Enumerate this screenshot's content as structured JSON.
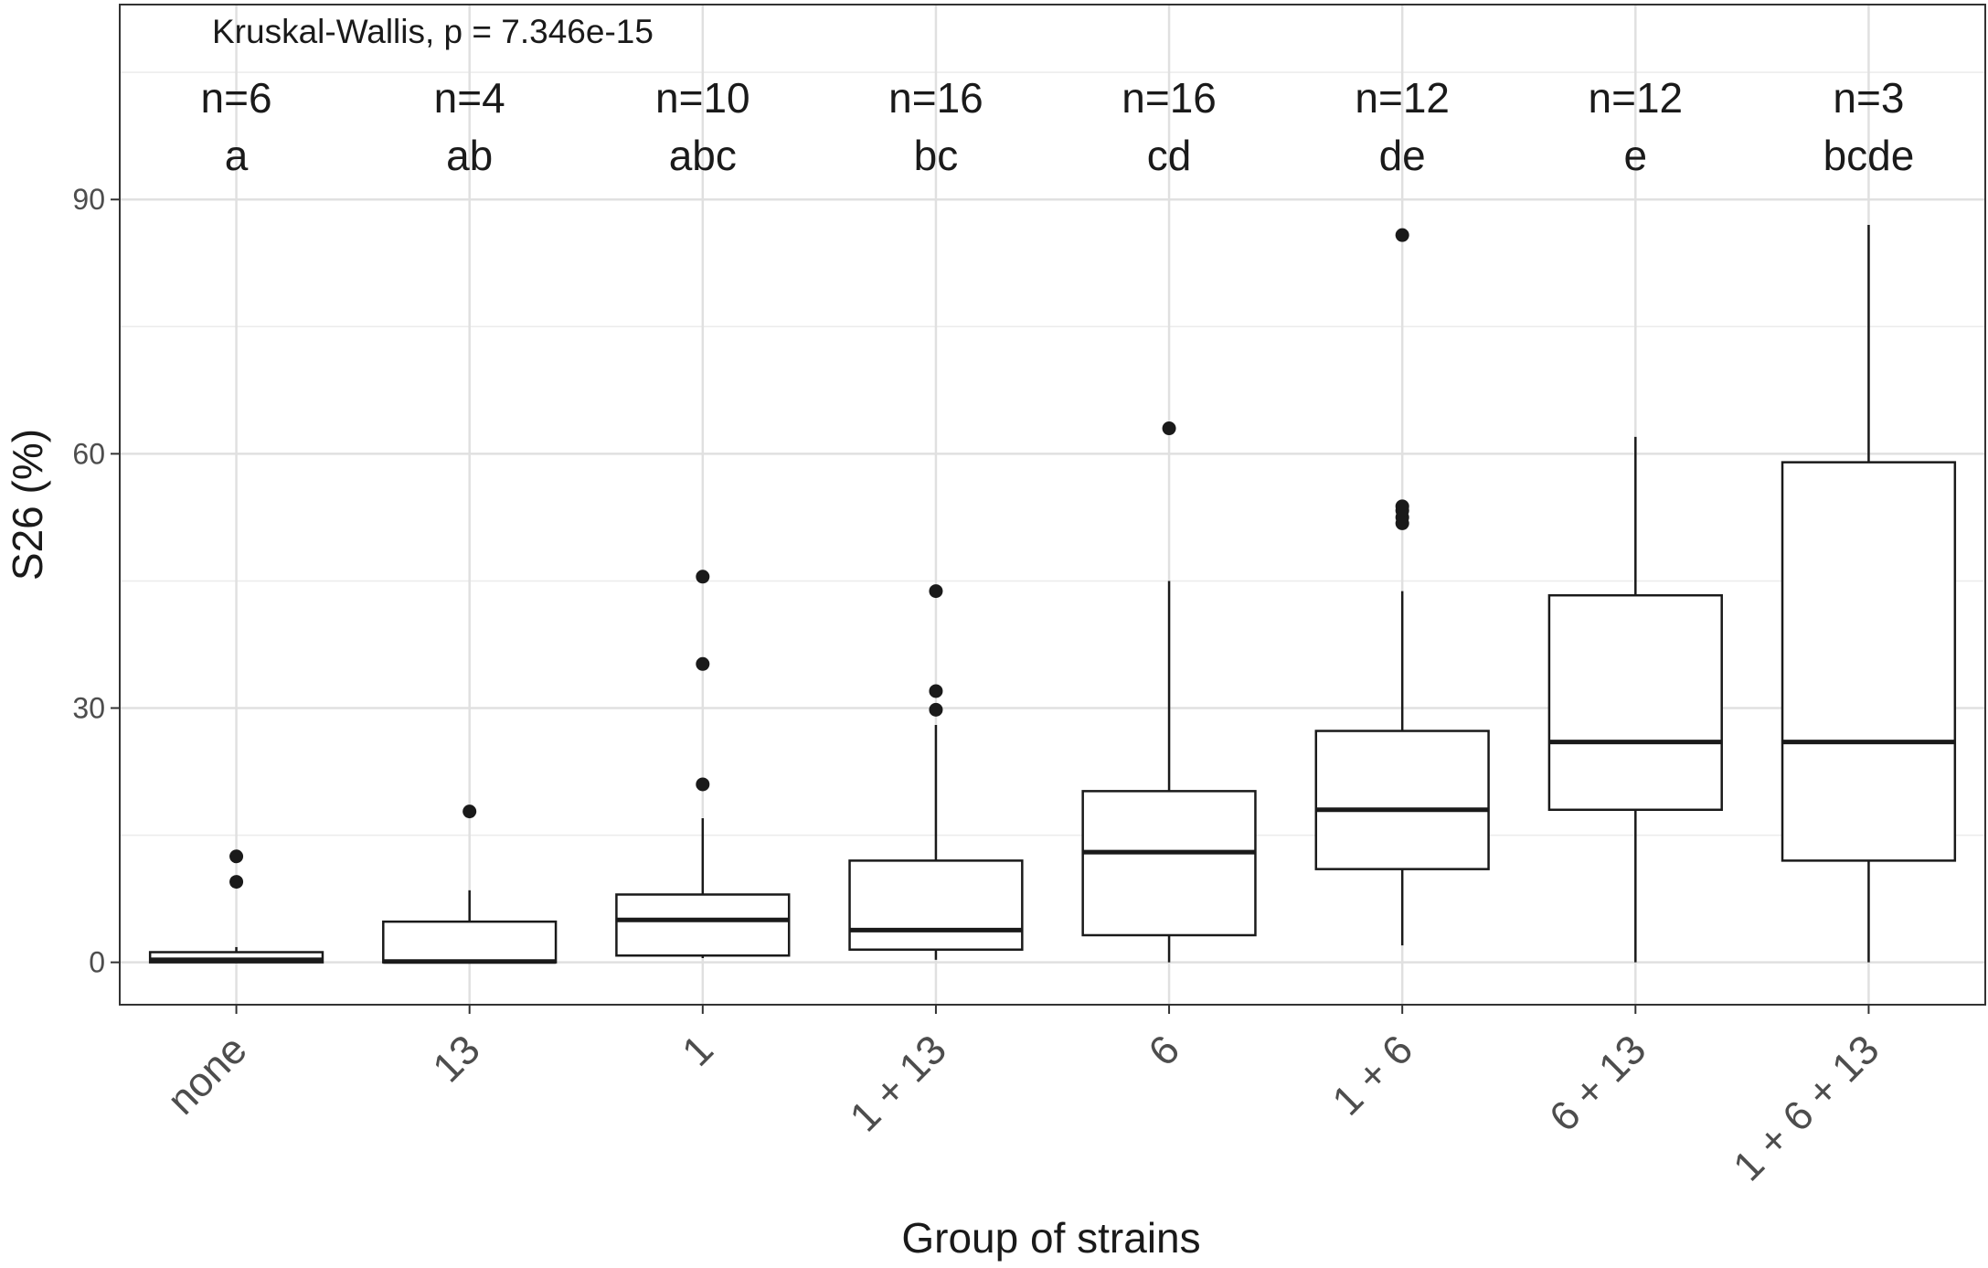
{
  "chart_data": {
    "type": "boxplot",
    "title": "",
    "test_annotation": "Kruskal-Wallis, p = 7.346e-15",
    "xlabel": "Group of strains",
    "ylabel": "S26 (%)",
    "ylim": [
      -5,
      113
    ],
    "yticks": [
      0,
      30,
      60,
      90
    ],
    "grid": true,
    "categories": [
      "none",
      "13",
      "1",
      "1 + 13",
      "6",
      "1 + 6",
      "6 + 13",
      "1 + 6 + 13"
    ],
    "n_labels": [
      "n=6",
      "n=4",
      "n=10",
      "n=16",
      "n=16",
      "n=12",
      "n=12",
      "n=3"
    ],
    "group_letters": [
      "a",
      "ab",
      "abc",
      "bc",
      "cd",
      "de",
      "e",
      "bcde"
    ],
    "boxes": [
      {
        "group": "none",
        "whisker_low": 0,
        "q1": 0,
        "median": 0.3,
        "q3": 1.2,
        "whisker_high": 1.8,
        "outliers": [
          9.5,
          12.5
        ]
      },
      {
        "group": "13",
        "whisker_low": 0,
        "q1": 0,
        "median": 0.1,
        "q3": 4.8,
        "whisker_high": 8.5,
        "outliers": [
          17.8
        ]
      },
      {
        "group": "1",
        "whisker_low": 0.5,
        "q1": 0.8,
        "median": 5.0,
        "q3": 8.0,
        "whisker_high": 17.0,
        "outliers": [
          21.0,
          35.2,
          45.5
        ]
      },
      {
        "group": "1 + 13",
        "whisker_low": 0.3,
        "q1": 1.5,
        "median": 3.8,
        "q3": 12.0,
        "whisker_high": 28.0,
        "outliers": [
          29.8,
          32.0,
          43.8
        ]
      },
      {
        "group": "6",
        "whisker_low": 0,
        "q1": 3.2,
        "median": 13.0,
        "q3": 20.2,
        "whisker_high": 45.0,
        "outliers": [
          63.0
        ]
      },
      {
        "group": "1 + 6",
        "whisker_low": 2.0,
        "q1": 11.0,
        "median": 18.0,
        "q3": 27.3,
        "whisker_high": 43.8,
        "outliers": [
          51.8,
          52.5,
          53.3,
          53.8,
          85.8
        ]
      },
      {
        "group": "6 + 13",
        "whisker_low": 0,
        "q1": 18.0,
        "median": 26.0,
        "q3": 43.3,
        "whisker_high": 62.0,
        "outliers": []
      },
      {
        "group": "1 + 6 + 13",
        "whisker_low": 0,
        "q1": 12.0,
        "median": 26.0,
        "q3": 59.0,
        "whisker_high": 87.0,
        "outliers": []
      }
    ]
  }
}
